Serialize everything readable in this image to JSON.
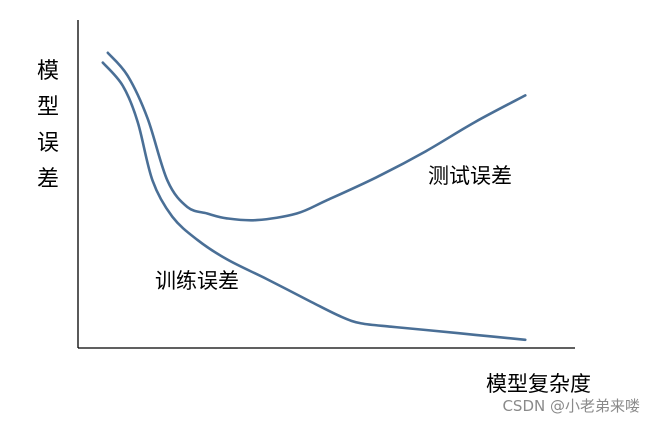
{
  "chart_data": {
    "type": "line",
    "title": "",
    "xlabel": "模型复杂度",
    "ylabel": "模型误差",
    "xlim": [
      0,
      10
    ],
    "ylim": [
      0,
      10
    ],
    "grid": false,
    "x_ticks_shown": false,
    "y_ticks_shown": false,
    "series": [
      {
        "name": "测试误差",
        "color": "#4a6f96",
        "x": [
          0.6,
          1.0,
          1.4,
          1.8,
          2.2,
          2.6,
          3.0,
          3.6,
          4.4,
          5.0,
          6.0,
          7.0,
          8.0,
          9.0
        ],
        "y": [
          9.0,
          8.3,
          7.0,
          5.1,
          4.3,
          4.1,
          3.95,
          3.9,
          4.1,
          4.5,
          5.2,
          6.0,
          6.9,
          7.7
        ]
      },
      {
        "name": "训练误差",
        "color": "#4a6f96",
        "x": [
          0.5,
          0.9,
          1.2,
          1.5,
          1.9,
          2.4,
          3.0,
          3.8,
          4.7,
          5.3,
          5.7,
          6.3,
          7.0,
          8.0,
          9.0
        ],
        "y": [
          8.7,
          8.0,
          6.9,
          5.1,
          4.0,
          3.3,
          2.7,
          2.1,
          1.4,
          0.95,
          0.75,
          0.65,
          0.55,
          0.4,
          0.25
        ]
      }
    ]
  },
  "watermark": "CSDN @小老弟来喽"
}
